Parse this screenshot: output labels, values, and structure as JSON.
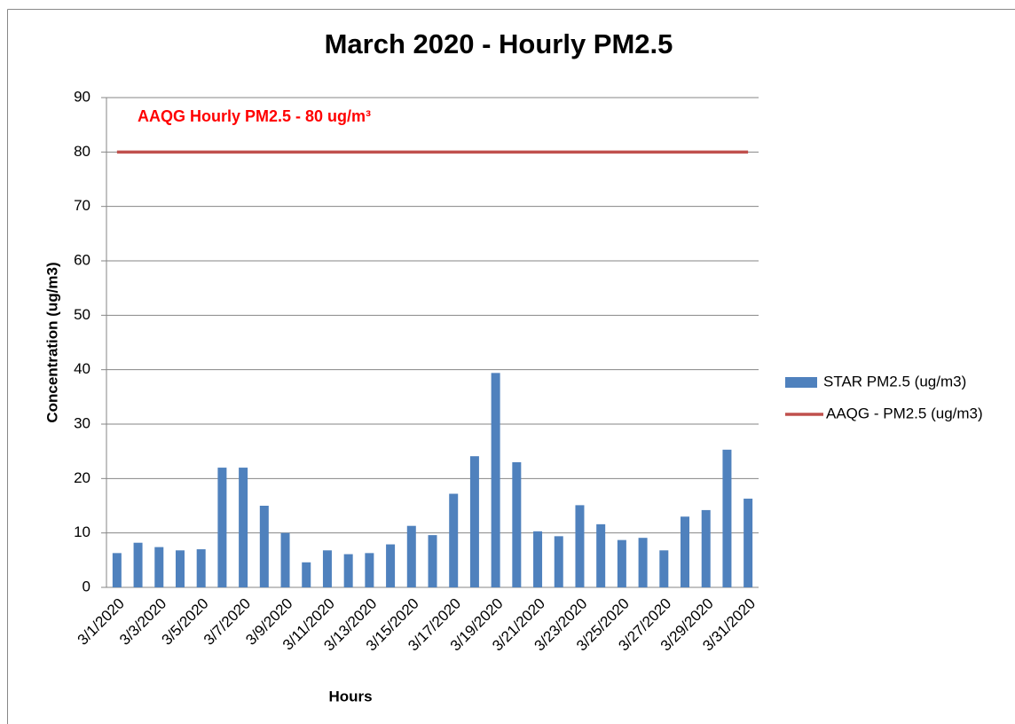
{
  "chart_data": {
    "type": "bar",
    "title": "March 2020 - Hourly PM2.5",
    "xlabel": "Hours",
    "ylabel": "Concentration (ug/m3)",
    "annotation": "AAQG Hourly PM2.5 - 80 ug/m³",
    "categories": [
      "3/1/2020",
      null,
      "3/3/2020",
      null,
      "3/5/2020",
      null,
      "3/7/2020",
      null,
      "3/9/2020",
      null,
      "3/11/2020",
      null,
      "3/13/2020",
      null,
      "3/15/2020",
      null,
      "3/17/2020",
      null,
      "3/19/2020",
      null,
      "3/21/2020",
      null,
      "3/23/2020",
      null,
      "3/25/2020",
      null,
      "3/27/2020",
      null,
      "3/29/2020",
      null,
      "3/31/2020"
    ],
    "series": [
      {
        "name": "STAR PM2.5 (ug/m3)",
        "type": "bar",
        "color": "#4f81bd",
        "values": [
          6.3,
          8.2,
          7.4,
          6.8,
          7.0,
          22,
          22,
          15,
          10,
          4.6,
          6.8,
          6.1,
          6.3,
          7.9,
          11.3,
          9.6,
          17.2,
          24.1,
          39.4,
          23,
          10.3,
          9.4,
          15.1,
          11.6,
          8.7,
          9.1,
          6.8,
          13,
          14.2,
          25.3,
          16.3
        ]
      },
      {
        "name": "AAQG - PM2.5 (ug/m3)",
        "type": "line",
        "color": "#c0504d",
        "values": [
          80,
          80,
          80,
          80,
          80,
          80,
          80,
          80,
          80,
          80,
          80,
          80,
          80,
          80,
          80,
          80,
          80,
          80,
          80,
          80,
          80,
          80,
          80,
          80,
          80,
          80,
          80,
          80,
          80,
          80,
          80
        ]
      }
    ],
    "ylim": [
      0,
      90
    ],
    "yticks": [
      0,
      10,
      20,
      30,
      40,
      50,
      60,
      70,
      80,
      90
    ],
    "grid": true,
    "legend": "right"
  }
}
